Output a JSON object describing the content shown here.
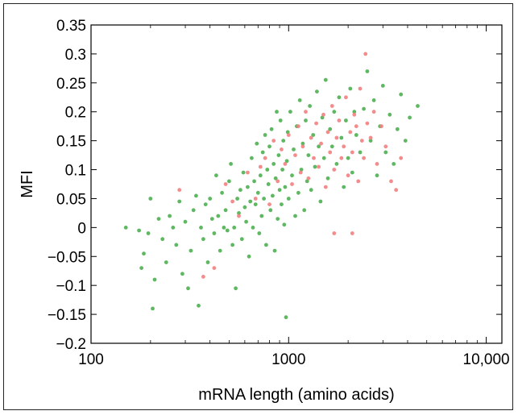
{
  "chart_data": {
    "type": "scatter",
    "xlabel": "mRNA length (amino acids)",
    "ylabel": "MFI",
    "x_scale": "log",
    "xlim": [
      100,
      12000
    ],
    "ylim": [
      -0.2,
      0.35
    ],
    "x_ticks": [
      100,
      1000,
      10000
    ],
    "x_tick_labels": [
      "100",
      "1000",
      "10,000"
    ],
    "y_ticks": [
      0.35,
      0.3,
      0.25,
      0.2,
      0.15,
      0.1,
      0.05,
      0,
      -0.05,
      -0.1,
      -0.15,
      -0.2
    ],
    "y_tick_labels": [
      "0.35",
      "0.3",
      "0.25",
      "0.2",
      "0.15",
      "0.1",
      "0.05",
      "0",
      "−0.05",
      "−0.1",
      "−0.15",
      "−0.2"
    ],
    "grid": false,
    "series": [
      {
        "color": "#4caf50",
        "points": [
          [
            150,
            0.0
          ],
          [
            175,
            -0.005
          ],
          [
            180,
            -0.07
          ],
          [
            185,
            -0.045
          ],
          [
            195,
            -0.01
          ],
          [
            200,
            0.05
          ],
          [
            205,
            -0.14
          ],
          [
            210,
            -0.09
          ],
          [
            220,
            0.015
          ],
          [
            230,
            -0.02
          ],
          [
            240,
            -0.06
          ],
          [
            250,
            0.02
          ],
          [
            260,
            0.0
          ],
          [
            270,
            -0.03
          ],
          [
            280,
            0.045
          ],
          [
            290,
            -0.08
          ],
          [
            300,
            0.01
          ],
          [
            310,
            -0.105
          ],
          [
            320,
            -0.04
          ],
          [
            330,
            0.03
          ],
          [
            340,
            0.055
          ],
          [
            350,
            -0.135
          ],
          [
            360,
            0.0
          ],
          [
            370,
            -0.02
          ],
          [
            380,
            0.04
          ],
          [
            390,
            -0.06
          ],
          [
            400,
            0.05
          ],
          [
            410,
            0.015
          ],
          [
            420,
            -0.01
          ],
          [
            430,
            0.09
          ],
          [
            440,
            0.02
          ],
          [
            450,
            -0.04
          ],
          [
            460,
            0.06
          ],
          [
            470,
            0.0
          ],
          [
            480,
            0.03
          ],
          [
            490,
            -0.005
          ],
          [
            500,
            0.08
          ],
          [
            510,
            0.11
          ],
          [
            520,
            -0.03
          ],
          [
            530,
            0.0
          ],
          [
            540,
            -0.105
          ],
          [
            550,
            0.05
          ],
          [
            560,
            0.025
          ],
          [
            570,
            0.065
          ],
          [
            580,
            -0.02
          ],
          [
            590,
            0.095
          ],
          [
            600,
            0.035
          ],
          [
            610,
            0.01
          ],
          [
            620,
            0.07
          ],
          [
            630,
            -0.05
          ],
          [
            640,
            0.045
          ],
          [
            650,
            0.12
          ],
          [
            660,
            0.0
          ],
          [
            670,
            0.08
          ],
          [
            680,
            0.04
          ],
          [
            690,
            0.145
          ],
          [
            700,
            0.06
          ],
          [
            710,
            -0.01
          ],
          [
            720,
            0.09
          ],
          [
            730,
            0.02
          ],
          [
            740,
            0.13
          ],
          [
            750,
            0.05
          ],
          [
            760,
            0.16
          ],
          [
            770,
            -0.03
          ],
          [
            780,
            0.1
          ],
          [
            790,
            0.075
          ],
          [
            800,
            0.14
          ],
          [
            810,
            0.03
          ],
          [
            820,
            0.17
          ],
          [
            830,
            0.055
          ],
          [
            840,
            0.11
          ],
          [
            850,
            -0.04
          ],
          [
            860,
            0.085
          ],
          [
            870,
            0.2
          ],
          [
            880,
            0.015
          ],
          [
            890,
            0.125
          ],
          [
            900,
            0.065
          ],
          [
            910,
            0.185
          ],
          [
            920,
            0.04
          ],
          [
            930,
            0.1
          ],
          [
            940,
            0.15
          ],
          [
            950,
            0.005
          ],
          [
            960,
            0.07
          ],
          [
            970,
            -0.155
          ],
          [
            980,
            0.115
          ],
          [
            990,
            0.165
          ],
          [
            1000,
            0.05
          ],
          [
            1020,
            0.2
          ],
          [
            1040,
            0.09
          ],
          [
            1060,
            0.135
          ],
          [
            1080,
            0.02
          ],
          [
            1100,
            0.175
          ],
          [
            1120,
            0.06
          ],
          [
            1140,
            0.22
          ],
          [
            1160,
            0.1
          ],
          [
            1180,
            0.145
          ],
          [
            1200,
            0.03
          ],
          [
            1220,
            0.185
          ],
          [
            1240,
            0.08
          ],
          [
            1260,
            0.125
          ],
          [
            1280,
            0.21
          ],
          [
            1300,
            0.065
          ],
          [
            1330,
            0.16
          ],
          [
            1360,
            0.105
          ],
          [
            1390,
            0.235
          ],
          [
            1420,
            0.14
          ],
          [
            1450,
            0.045
          ],
          [
            1480,
            0.19
          ],
          [
            1510,
            0.12
          ],
          [
            1540,
            0.255
          ],
          [
            1580,
            0.085
          ],
          [
            1620,
            0.17
          ],
          [
            1660,
            0.14
          ],
          [
            1700,
            0.2
          ],
          [
            1750,
            0.11
          ],
          [
            1800,
            0.225
          ],
          [
            1850,
            0.155
          ],
          [
            1900,
            0.07
          ],
          [
            1950,
            0.185
          ],
          [
            2000,
            0.12
          ],
          [
            2050,
            0.24
          ],
          [
            2100,
            0.095
          ],
          [
            2150,
            0.2
          ],
          [
            2200,
            0.16
          ],
          [
            2300,
            0.13
          ],
          [
            2400,
            0.205
          ],
          [
            2500,
            0.27
          ],
          [
            2600,
            0.15
          ],
          [
            2700,
            0.22
          ],
          [
            2800,
            0.09
          ],
          [
            2900,
            0.175
          ],
          [
            3000,
            0.245
          ],
          [
            3100,
            0.13
          ],
          [
            3250,
            0.195
          ],
          [
            3400,
            0.11
          ],
          [
            3550,
            0.17
          ],
          [
            3700,
            0.23
          ],
          [
            3900,
            0.15
          ],
          [
            4100,
            0.19
          ],
          [
            4500,
            0.21
          ]
        ]
      },
      {
        "color": "#f28080",
        "points": [
          [
            280,
            0.065
          ],
          [
            370,
            -0.085
          ],
          [
            420,
            -0.07
          ],
          [
            480,
            0.075
          ],
          [
            520,
            0.045
          ],
          [
            560,
            0.02
          ],
          [
            620,
            0.095
          ],
          [
            680,
            0.05
          ],
          [
            720,
            0.105
          ],
          [
            760,
            0.12
          ],
          [
            800,
            0.04
          ],
          [
            840,
            0.15
          ],
          [
            880,
            0.08
          ],
          [
            920,
            0.135
          ],
          [
            960,
            0.11
          ],
          [
            1000,
            0.16
          ],
          [
            1040,
            0.075
          ],
          [
            1080,
            0.125
          ],
          [
            1120,
            0.175
          ],
          [
            1150,
            0.095
          ],
          [
            1180,
            0.14
          ],
          [
            1220,
            0.2
          ],
          [
            1260,
            0.085
          ],
          [
            1300,
            0.155
          ],
          [
            1340,
            0.12
          ],
          [
            1380,
            0.18
          ],
          [
            1420,
            0.105
          ],
          [
            1460,
            0.145
          ],
          [
            1500,
            0.195
          ],
          [
            1540,
            0.07
          ],
          [
            1580,
            0.165
          ],
          [
            1620,
            0.13
          ],
          [
            1660,
            0.21
          ],
          [
            1700,
            0.1
          ],
          [
            1750,
            0.155
          ],
          [
            1800,
            0.185
          ],
          [
            1850,
            0.12
          ],
          [
            1900,
            0.14
          ],
          [
            1950,
            0.225
          ],
          [
            2000,
            0.09
          ],
          [
            2050,
            0.165
          ],
          [
            2100,
            0.13
          ],
          [
            2150,
            0.195
          ],
          [
            2200,
            0.175
          ],
          [
            2250,
            0.08
          ],
          [
            2300,
            0.24
          ],
          [
            2350,
            0.15
          ],
          [
            2400,
            0.12
          ],
          [
            2450,
            0.3
          ],
          [
            2500,
            0.18
          ],
          [
            2600,
            0.155
          ],
          [
            2700,
            0.2
          ],
          [
            2800,
            0.11
          ],
          [
            2950,
            0.175
          ],
          [
            3100,
            0.14
          ],
          [
            3300,
            0.08
          ],
          [
            3500,
            0.065
          ],
          [
            3700,
            0.12
          ],
          [
            1700,
            -0.01
          ],
          [
            2100,
            -0.01
          ]
        ]
      }
    ]
  }
}
